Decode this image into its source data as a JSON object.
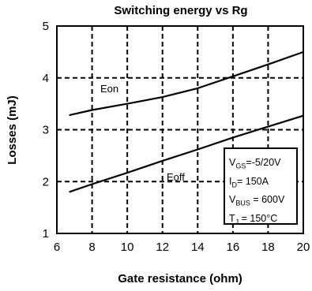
{
  "chart_data": {
    "type": "line",
    "title": "Switching energy vs Rg",
    "xlabel": "Gate resistance (ohm)",
    "ylabel": "Losses (mJ)",
    "xlim": [
      6,
      20
    ],
    "ylim": [
      1,
      5
    ],
    "xticks": [
      "6",
      "8",
      "10",
      "12",
      "14",
      "16",
      "18",
      "20"
    ],
    "yticks": [
      "1",
      "2",
      "3",
      "4",
      "5"
    ],
    "grid": "dashed",
    "series": [
      {
        "name": "Eon",
        "x": [
          6.7,
          8,
          10,
          12,
          14,
          16,
          18,
          20
        ],
        "y": [
          3.28,
          3.38,
          3.5,
          3.63,
          3.8,
          4.03,
          4.26,
          4.5
        ]
      },
      {
        "name": "Eoff",
        "x": [
          6.7,
          8,
          10,
          12,
          14,
          16,
          18,
          20
        ],
        "y": [
          1.8,
          1.95,
          2.17,
          2.4,
          2.62,
          2.85,
          3.06,
          3.27
        ]
      }
    ],
    "conditions": {
      "vgs": {
        "sym": "V",
        "sub": "GS",
        "val": "=-5/20V"
      },
      "id": {
        "sym": "I",
        "sub": "D",
        "val": "= 150A"
      },
      "vbus": {
        "sym": "V",
        "sub": "BUS",
        "val": " = 600V"
      },
      "tj": {
        "sym": "T",
        "sub": "J",
        "val": " = 150°C"
      }
    }
  }
}
